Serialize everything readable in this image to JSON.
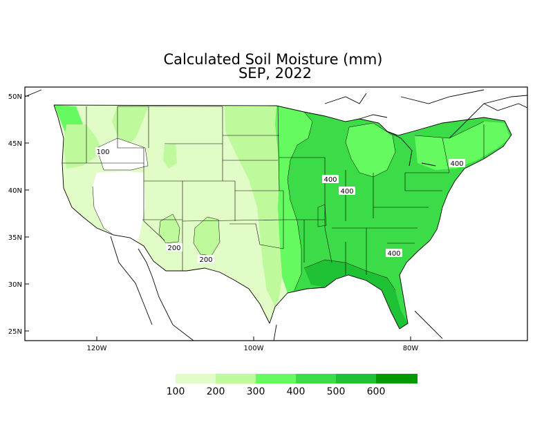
{
  "title": {
    "line1": "Calculated Soil Moisture (mm)",
    "line2": "SEP, 2022"
  },
  "axes": {
    "y_ticks": [
      "50N",
      "45N",
      "40N",
      "35N",
      "30N",
      "25N"
    ],
    "x_ticks": [
      "120W",
      "100W",
      "80W"
    ]
  },
  "contour_labels": [
    "100",
    "200",
    "200",
    "400",
    "400",
    "400",
    "400"
  ],
  "legend": {
    "labels": [
      "100",
      "200",
      "300",
      "400",
      "500",
      "600"
    ],
    "colors": [
      "#e1fcc6",
      "#bef99c",
      "#66fa61",
      "#3bdc47",
      "#1ec234",
      "#029a02"
    ]
  },
  "map_colors": {
    "lt100": "#ffffff",
    "c100_200": "#e1fcc6",
    "c200_300": "#bef99c",
    "c300_400": "#66fa61",
    "c400_500": "#3bdc47",
    "c500_600": "#1ec234",
    "gt600": "#029a02",
    "ocean": "#ffffff"
  }
}
